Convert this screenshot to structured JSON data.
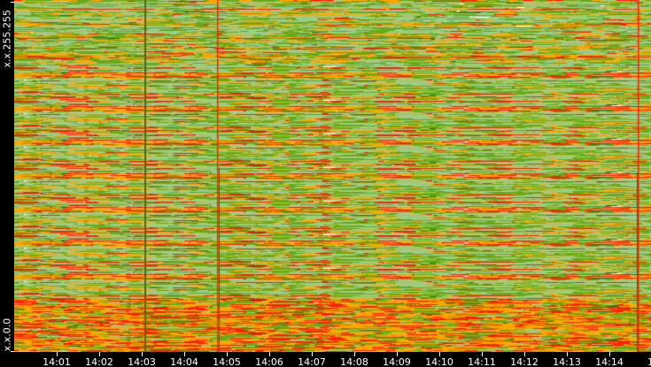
{
  "chart_data": {
    "type": "heatmap",
    "title": "",
    "xlabel": "",
    "ylabel": "",
    "x_tick_labels": [
      "14:01",
      "14:02",
      "14:03",
      "14:04",
      "14:05",
      "14:06",
      "14:07",
      "14:08",
      "14:09",
      "14:10",
      "14:11",
      "14:12",
      "14:13",
      "14:14",
      "14"
    ],
    "y_tick_labels": [
      "x.x.255.255",
      "x.x.0.0"
    ],
    "y_range": [
      "x.x.0.0",
      "x.x.255.255"
    ],
    "grid": false,
    "legend": "none",
    "colors": {
      "low": "#9ccc8a",
      "medium_low": "#6aaa1a",
      "medium": "#ffa500",
      "high": "#ff2000",
      "peak": "#ffffff",
      "sparse": "#2e6e10",
      "background": "#000000"
    }
  }
}
